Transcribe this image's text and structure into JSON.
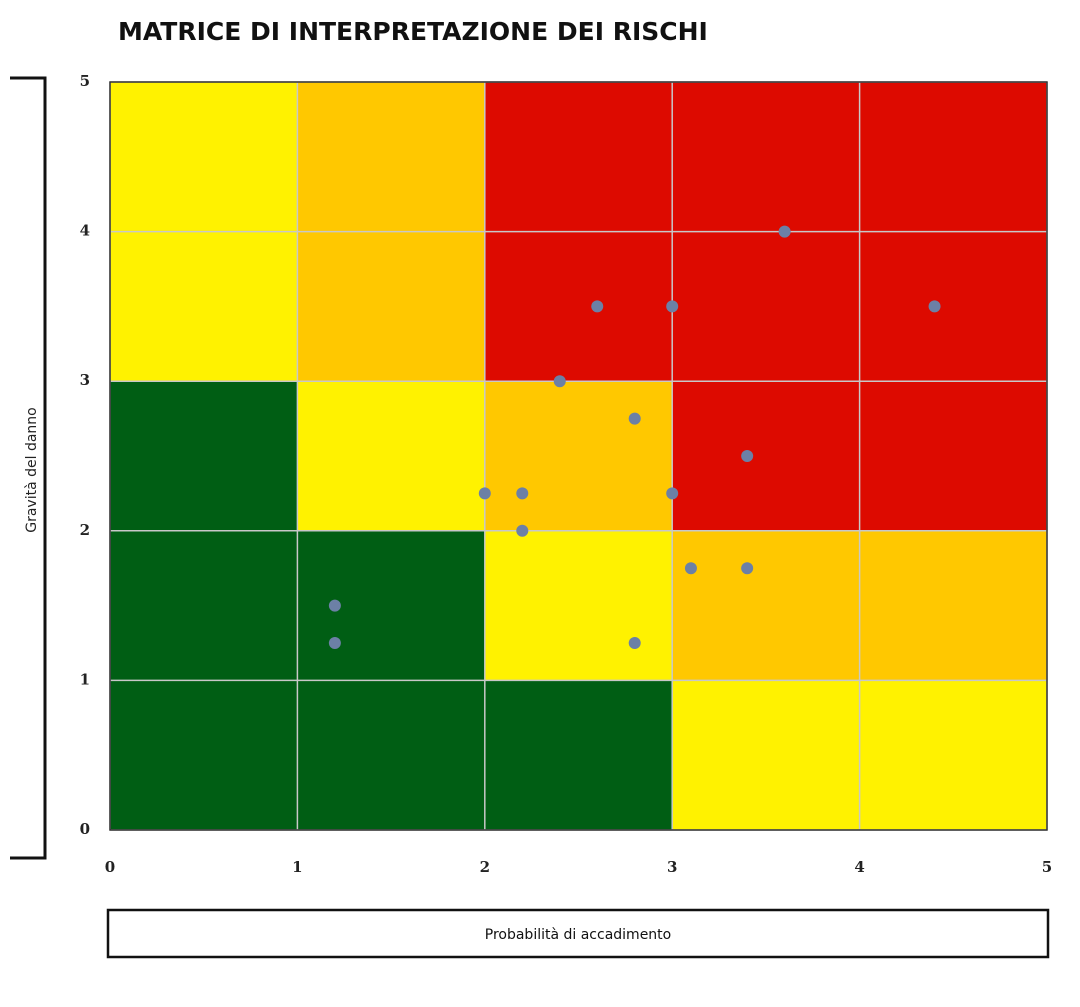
{
  "chart_data": {
    "type": "scatter",
    "title": "MATRICE DI INTERPRETAZIONE DEI RISCHI",
    "x_label": "Probabilità di accadimento",
    "y_label": "Gravità del danno",
    "xlim": [
      0,
      5
    ],
    "ylim": [
      0,
      5
    ],
    "xticks": [
      0,
      1,
      2,
      3,
      4,
      5
    ],
    "yticks": [
      0,
      1,
      2,
      3,
      4,
      5
    ],
    "grid": true,
    "zone_colors": [
      [
        "#005e14",
        "#005e14",
        "#005e14",
        "#fff200",
        "#fff200"
      ],
      [
        "#005e14",
        "#005e14",
        "#fff200",
        "#ffc800",
        "#ffc800"
      ],
      [
        "#005e14",
        "#fff200",
        "#ffc800",
        "#dd0a00",
        "#dd0a00"
      ],
      [
        "#fff200",
        "#ffc800",
        "#dd0a00",
        "#dd0a00",
        "#dd0a00"
      ],
      [
        "#fff200",
        "#ffc800",
        "#dd0a00",
        "#dd0a00",
        "#dd0a00"
      ]
    ],
    "series": [
      {
        "color": "#6c80a6",
        "x": [
          3.6,
          2.6,
          3.0,
          4.4,
          2.4,
          2.8,
          3.4,
          2.0,
          2.2,
          3.0,
          2.2,
          3.1,
          3.4,
          1.2,
          1.2,
          2.8
        ],
        "values": [
          4.0,
          3.5,
          3.5,
          3.5,
          3.0,
          2.75,
          2.5,
          2.25,
          2.25,
          2.25,
          2.0,
          1.75,
          1.75,
          1.5,
          1.25,
          1.25
        ]
      }
    ]
  }
}
